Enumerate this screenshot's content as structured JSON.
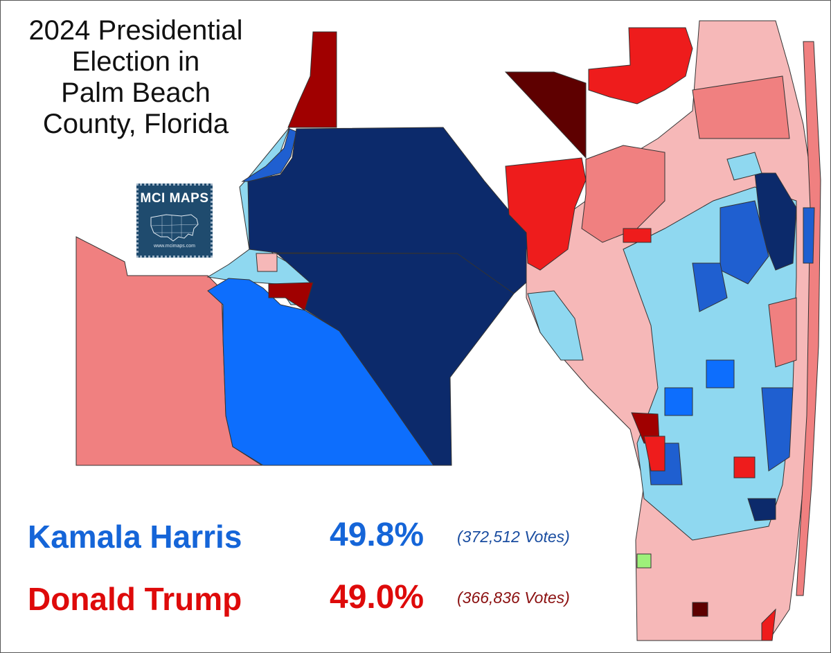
{
  "title_lines": [
    "2024 Presidential",
    "Election in",
    "Palm Beach",
    "County, Florida"
  ],
  "logo": {
    "text": "MCI MAPS",
    "url": "www.mcimaps.com"
  },
  "results": [
    {
      "candidate": "Kamala Harris",
      "percent": "49.8%",
      "votes": "(372,512  Votes)",
      "color": "#1565d8"
    },
    {
      "candidate": "Donald Trump",
      "percent": "49.0%",
      "votes": "(366,836  Votes)",
      "color": "#de0a0a"
    }
  ],
  "map_colors": {
    "dem_strong": "#0c2a6b",
    "dem_medium": "#1f5fd0",
    "dem_light": "#0d6efd",
    "dem_lean": "#8fd8f0",
    "rep_lean": "#f6b8b8",
    "rep_light": "#f08080",
    "rep_medium": "#ee1c1c",
    "rep_strong": "#a00000",
    "rep_darkest": "#5e0000"
  }
}
